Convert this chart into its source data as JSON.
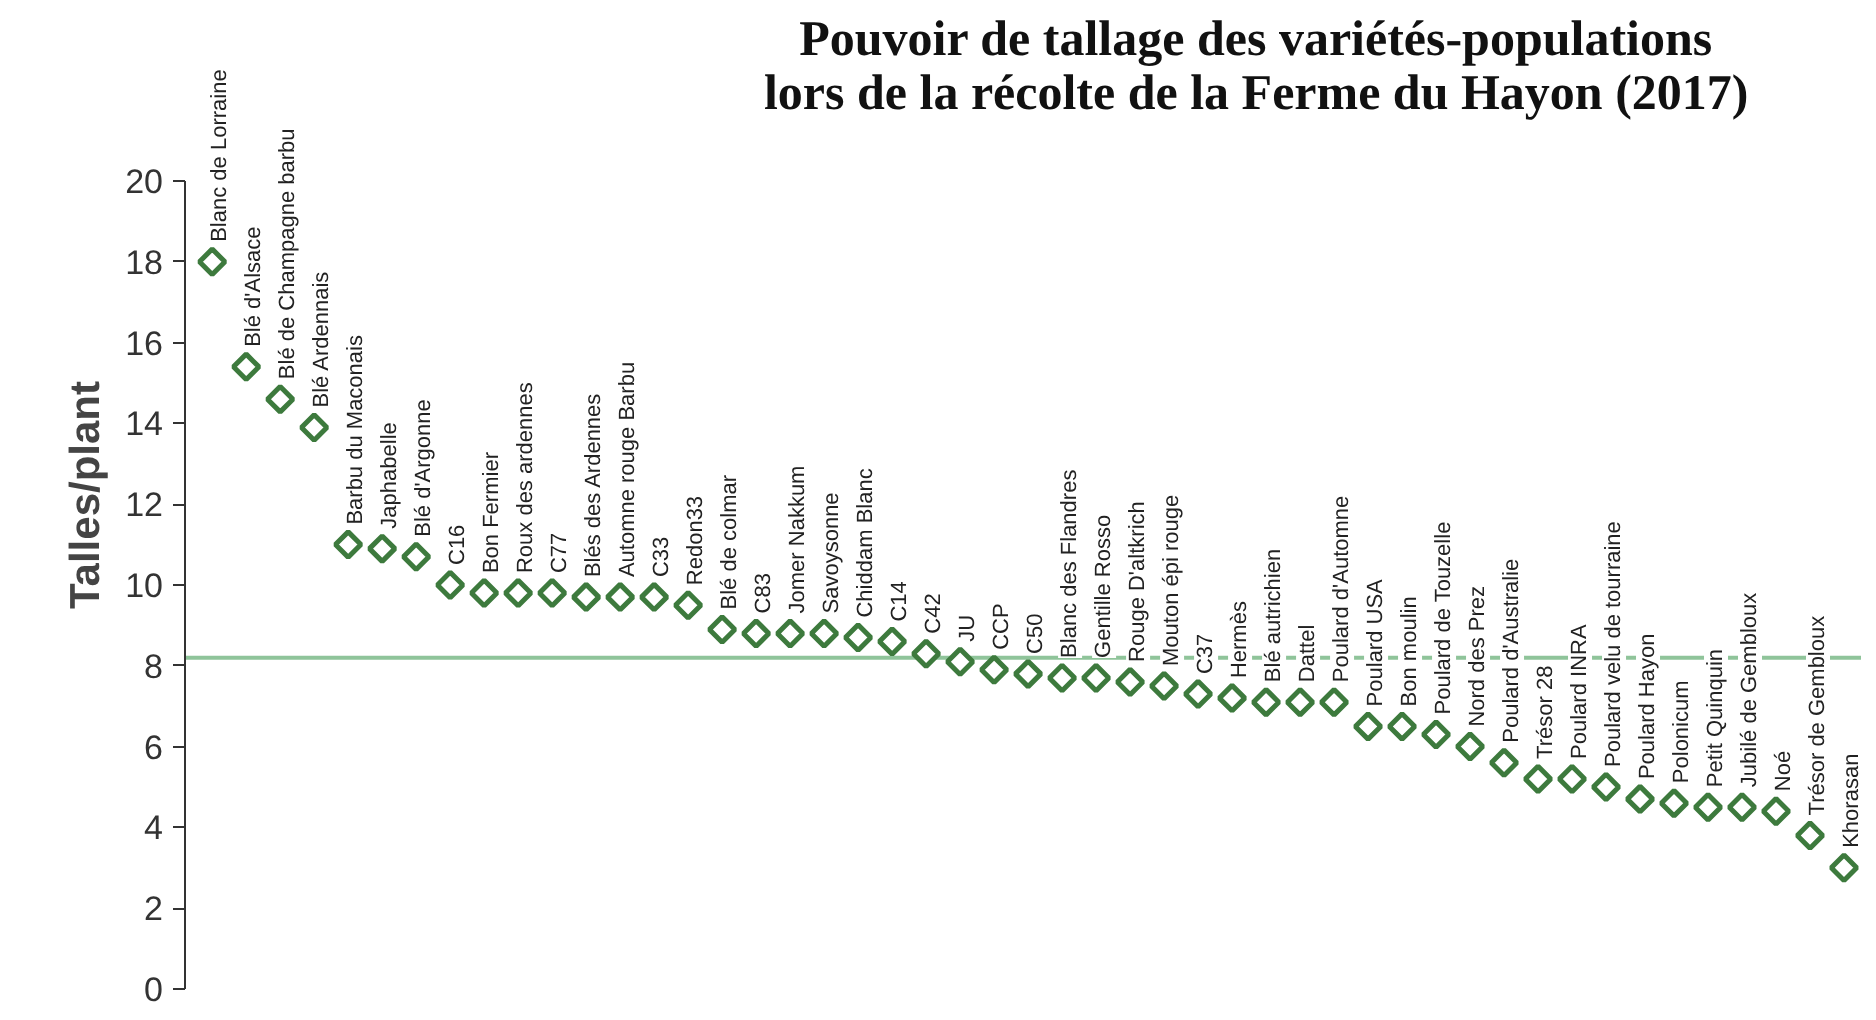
{
  "chart_data": {
    "type": "scatter",
    "title": "Pouvoir de tallage des variétés-populations\nlors de la récolte de la Ferme du Hayon (2017)",
    "ylabel": "Talles/plant",
    "categories": [
      "Blanc de Lorraine",
      "Blé d'Alsace",
      "Blé de Champagne barbu",
      "Blé Ardennais",
      "Barbu du Maconais",
      "Japhabelle",
      "Blé d'Argonne",
      "C16",
      "Bon Fermier",
      "Roux des ardennes",
      "C77",
      "Blés des Ardennes",
      "Automne rouge Barbu",
      "C33",
      "Redon33",
      "Blé de colmar",
      "C83",
      "Jomer Nakkum",
      "Savoysonne",
      "Chiddam Blanc",
      "C14",
      "C42",
      "JU",
      "CCP",
      "C50",
      "Blanc des Flandres",
      "Gentille Rosso",
      "Rouge D'altkrich",
      "Mouton épi rouge",
      "C37",
      "Hermès",
      "Blé autrichien",
      "Dattel",
      "Poulard d'Automne",
      "Poulard USA",
      "Bon moulin",
      "Poulard de Touzelle",
      "Nord des Prez",
      "Poulard d'Australie",
      "Trésor 28",
      "Poulard INRA",
      "Poulard velu de tourraine",
      "Poulard Hayon",
      "Polonicum",
      "Petit Quinquin",
      "Jubilé de Gembloux",
      "Noé",
      "Trésor de Gembloux",
      "Khorasan"
    ],
    "values": [
      18.0,
      15.4,
      14.6,
      13.9,
      11.0,
      10.9,
      10.7,
      10.0,
      9.8,
      9.8,
      9.8,
      9.7,
      9.7,
      9.7,
      9.5,
      8.9,
      8.8,
      8.8,
      8.8,
      8.7,
      8.6,
      8.3,
      8.1,
      7.9,
      7.8,
      7.7,
      7.7,
      7.6,
      7.5,
      7.3,
      7.2,
      7.1,
      7.1,
      7.1,
      6.5,
      6.5,
      6.3,
      6.0,
      5.6,
      5.2,
      5.2,
      5.0,
      4.7,
      4.6,
      4.5,
      4.5,
      4.4,
      3.8,
      3.0
    ],
    "color": "#3d7a3d",
    "marker": "diamond",
    "ylim": [
      0,
      20
    ],
    "yticks": [
      0,
      2,
      4,
      6,
      8,
      10,
      12,
      14,
      16,
      18,
      20
    ],
    "ref_lines": [
      {
        "axis": "y",
        "value": 8.2,
        "color": "#8fc49a"
      }
    ],
    "grid": false,
    "tick_labels": "y"
  }
}
